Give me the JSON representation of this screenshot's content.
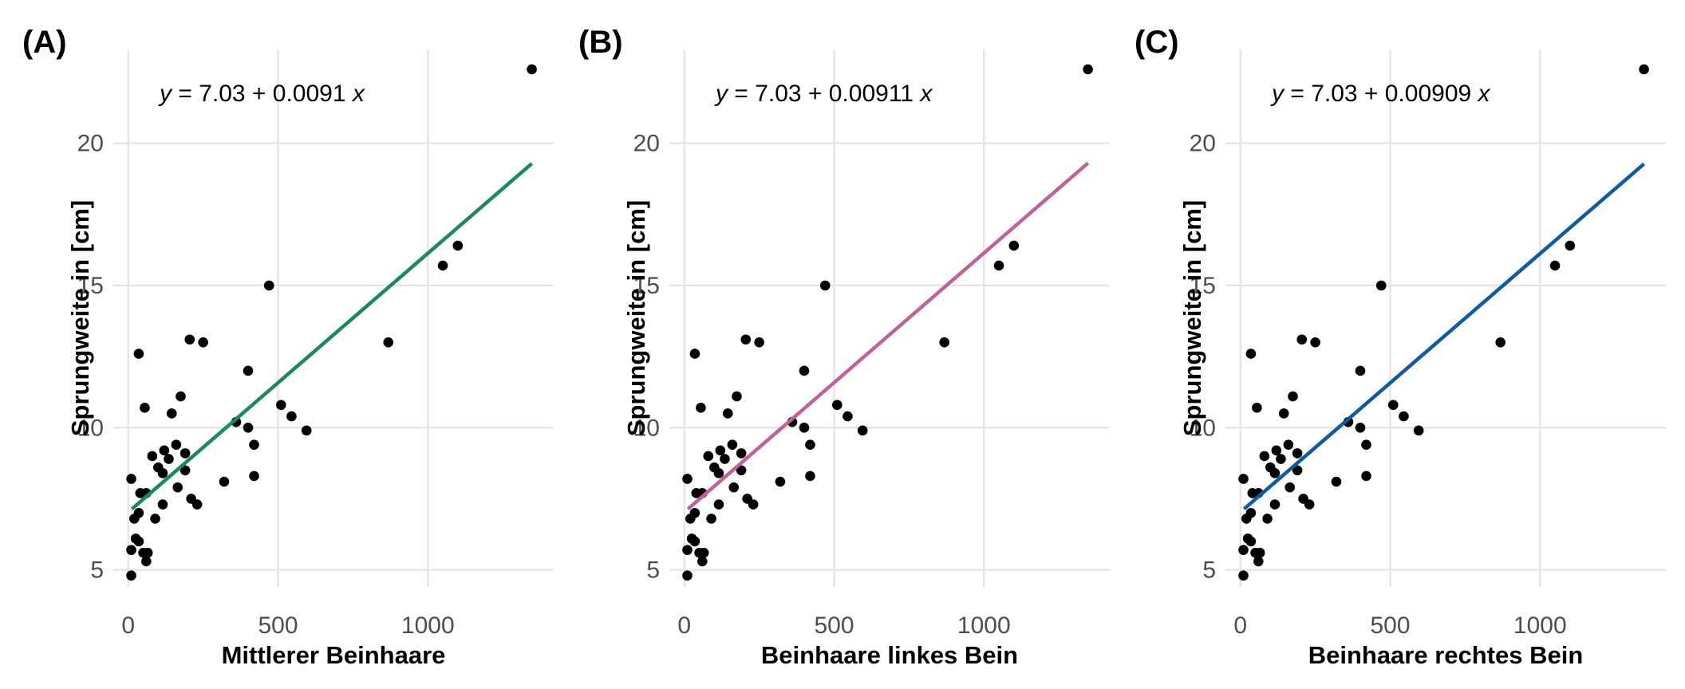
{
  "chart_data": [
    {
      "type": "scatter",
      "panel_label": "(A)",
      "xlabel": "Mittlerer Beinhaare",
      "ylabel": "Sprungweite in [cm]",
      "equation": {
        "lhs": "y",
        "eq": " = 7.03 + 0.0091 ",
        "rhs": "x"
      },
      "fit": {
        "intercept": 7.03,
        "slope": 0.0091,
        "x_range": [
          12,
          1347
        ],
        "color": "#1b8a5a"
      },
      "xlim": [
        -50,
        1420
      ],
      "ylim": [
        4.4,
        23.3
      ],
      "xticks": [
        0,
        500,
        1000
      ],
      "yticks": [
        5,
        10,
        15,
        20
      ],
      "grid": true,
      "points": [
        [
          1347,
          22.6
        ],
        [
          1100,
          16.4
        ],
        [
          1050,
          15.7
        ],
        [
          868,
          13.0
        ],
        [
          470,
          15.0
        ],
        [
          400,
          12.0
        ],
        [
          250,
          13.0
        ],
        [
          205,
          13.1
        ],
        [
          175,
          11.1
        ],
        [
          35,
          12.6
        ],
        [
          55,
          10.7
        ],
        [
          145,
          10.5
        ],
        [
          360,
          10.2
        ],
        [
          400,
          10.0
        ],
        [
          510,
          10.8
        ],
        [
          545,
          10.4
        ],
        [
          595,
          9.9
        ],
        [
          420,
          9.4
        ],
        [
          160,
          9.4
        ],
        [
          120,
          9.2
        ],
        [
          190,
          9.1
        ],
        [
          80,
          9.0
        ],
        [
          135,
          8.9
        ],
        [
          100,
          8.6
        ],
        [
          115,
          8.4
        ],
        [
          190,
          8.5
        ],
        [
          420,
          8.3
        ],
        [
          320,
          8.1
        ],
        [
          10,
          8.2
        ],
        [
          40,
          7.7
        ],
        [
          60,
          7.7
        ],
        [
          165,
          7.9
        ],
        [
          210,
          7.5
        ],
        [
          230,
          7.3
        ],
        [
          115,
          7.3
        ],
        [
          35,
          7.0
        ],
        [
          90,
          6.8
        ],
        [
          20,
          6.8
        ],
        [
          25,
          6.1
        ],
        [
          35,
          6.0
        ],
        [
          10,
          5.7
        ],
        [
          50,
          5.6
        ],
        [
          65,
          5.6
        ],
        [
          60,
          5.3
        ],
        [
          10,
          4.8
        ]
      ]
    },
    {
      "type": "scatter",
      "panel_label": "(B)",
      "xlabel": "Beinhaare linkes Bein",
      "ylabel": "Sprungweite in [cm]",
      "equation": {
        "lhs": "y",
        "eq": " = 7.03 + 0.00911 ",
        "rhs": "x"
      },
      "fit": {
        "intercept": 7.03,
        "slope": 0.00911,
        "x_range": [
          12,
          1347
        ],
        "color": "#c0629a"
      },
      "xlim": [
        -50,
        1420
      ],
      "ylim": [
        4.4,
        23.3
      ],
      "xticks": [
        0,
        500,
        1000
      ],
      "yticks": [
        5,
        10,
        15,
        20
      ],
      "grid": true,
      "points": [
        [
          1347,
          22.6
        ],
        [
          1100,
          16.4
        ],
        [
          1050,
          15.7
        ],
        [
          868,
          13.0
        ],
        [
          470,
          15.0
        ],
        [
          400,
          12.0
        ],
        [
          250,
          13.0
        ],
        [
          205,
          13.1
        ],
        [
          175,
          11.1
        ],
        [
          35,
          12.6
        ],
        [
          55,
          10.7
        ],
        [
          145,
          10.5
        ],
        [
          360,
          10.2
        ],
        [
          400,
          10.0
        ],
        [
          510,
          10.8
        ],
        [
          545,
          10.4
        ],
        [
          595,
          9.9
        ],
        [
          420,
          9.4
        ],
        [
          160,
          9.4
        ],
        [
          120,
          9.2
        ],
        [
          190,
          9.1
        ],
        [
          80,
          9.0
        ],
        [
          135,
          8.9
        ],
        [
          100,
          8.6
        ],
        [
          115,
          8.4
        ],
        [
          190,
          8.5
        ],
        [
          420,
          8.3
        ],
        [
          320,
          8.1
        ],
        [
          10,
          8.2
        ],
        [
          40,
          7.7
        ],
        [
          60,
          7.7
        ],
        [
          165,
          7.9
        ],
        [
          210,
          7.5
        ],
        [
          230,
          7.3
        ],
        [
          115,
          7.3
        ],
        [
          35,
          7.0
        ],
        [
          90,
          6.8
        ],
        [
          20,
          6.8
        ],
        [
          25,
          6.1
        ],
        [
          35,
          6.0
        ],
        [
          10,
          5.7
        ],
        [
          50,
          5.6
        ],
        [
          65,
          5.6
        ],
        [
          60,
          5.3
        ],
        [
          10,
          4.8
        ]
      ]
    },
    {
      "type": "scatter",
      "panel_label": "(C)",
      "xlabel": "Beinhaare rechtes Bein",
      "ylabel": "Sprungweite in [cm]",
      "equation": {
        "lhs": "y",
        "eq": " = 7.03 + 0.00909 ",
        "rhs": "x"
      },
      "fit": {
        "intercept": 7.03,
        "slope": 0.00909,
        "x_range": [
          12,
          1347
        ],
        "color": "#0f5ba3"
      },
      "xlim": [
        -50,
        1420
      ],
      "ylim": [
        4.4,
        23.3
      ],
      "xticks": [
        0,
        500,
        1000
      ],
      "yticks": [
        5,
        10,
        15,
        20
      ],
      "grid": true,
      "points": [
        [
          1347,
          22.6
        ],
        [
          1100,
          16.4
        ],
        [
          1050,
          15.7
        ],
        [
          868,
          13.0
        ],
        [
          470,
          15.0
        ],
        [
          400,
          12.0
        ],
        [
          250,
          13.0
        ],
        [
          205,
          13.1
        ],
        [
          175,
          11.1
        ],
        [
          35,
          12.6
        ],
        [
          55,
          10.7
        ],
        [
          145,
          10.5
        ],
        [
          360,
          10.2
        ],
        [
          400,
          10.0
        ],
        [
          510,
          10.8
        ],
        [
          545,
          10.4
        ],
        [
          595,
          9.9
        ],
        [
          420,
          9.4
        ],
        [
          160,
          9.4
        ],
        [
          120,
          9.2
        ],
        [
          190,
          9.1
        ],
        [
          80,
          9.0
        ],
        [
          135,
          8.9
        ],
        [
          100,
          8.6
        ],
        [
          115,
          8.4
        ],
        [
          190,
          8.5
        ],
        [
          420,
          8.3
        ],
        [
          320,
          8.1
        ],
        [
          10,
          8.2
        ],
        [
          40,
          7.7
        ],
        [
          60,
          7.7
        ],
        [
          165,
          7.9
        ],
        [
          210,
          7.5
        ],
        [
          230,
          7.3
        ],
        [
          115,
          7.3
        ],
        [
          35,
          7.0
        ],
        [
          90,
          6.8
        ],
        [
          20,
          6.8
        ],
        [
          25,
          6.1
        ],
        [
          35,
          6.0
        ],
        [
          10,
          5.7
        ],
        [
          50,
          5.6
        ],
        [
          65,
          5.6
        ],
        [
          60,
          5.3
        ],
        [
          10,
          4.8
        ]
      ]
    }
  ]
}
